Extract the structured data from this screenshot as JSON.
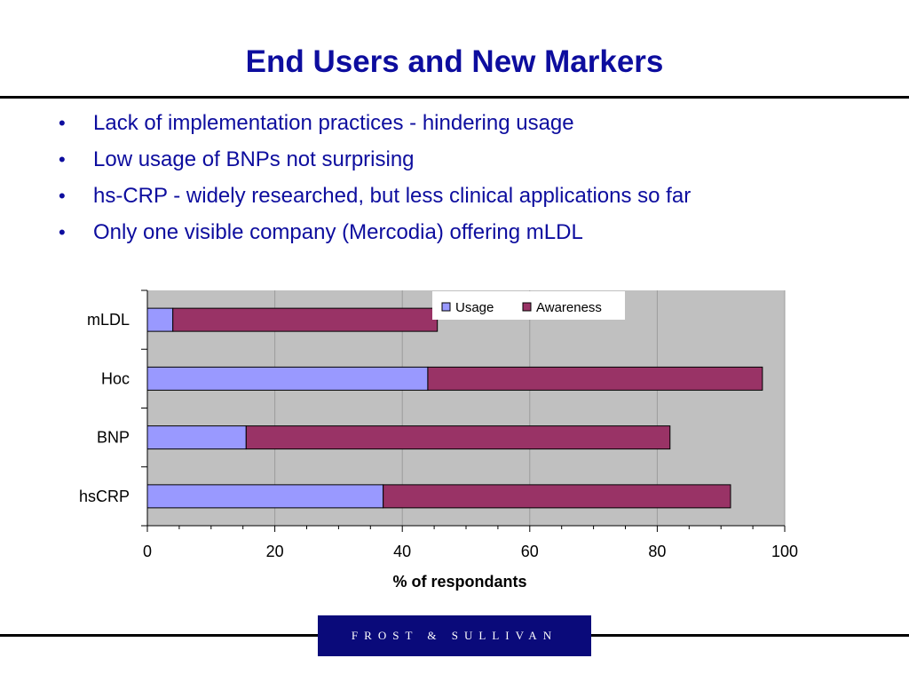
{
  "slide": {
    "title": "End Users and New Markers",
    "bullets": [
      "Lack of implementation practices - hindering usage",
      "Low usage of BNPs not surprising",
      "hs-CRP - widely researched, but less clinical applications so far",
      "Only one visible company (Mercodia) offering mLDL"
    ],
    "bullet_glyph": "•",
    "logo_text": "FROST & SULLIVAN"
  },
  "chart_data": {
    "type": "bar",
    "orientation": "horizontal",
    "stacked": true,
    "categories": [
      "mLDL",
      "Hoc",
      "BNP",
      "hsCRP"
    ],
    "series": [
      {
        "name": "Usage",
        "values": [
          4,
          44,
          15.5,
          37
        ],
        "color": "#9999ff"
      },
      {
        "name": "Awareness",
        "values": [
          41.5,
          52.5,
          66.5,
          54.5
        ],
        "color": "#993366"
      }
    ],
    "xlabel": "% of respondants",
    "xlim": [
      0,
      100
    ],
    "xticks": [
      0,
      20,
      40,
      60,
      80,
      100
    ],
    "grid": true,
    "legend": "top-right",
    "plot_background": "#c0c0c0"
  },
  "colors": {
    "title": "#0d0d9e",
    "bullet_text": "#0d0d9e",
    "logo_background": "#0a0a7a"
  }
}
